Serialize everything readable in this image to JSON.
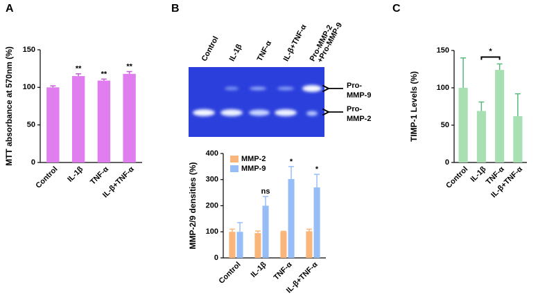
{
  "chart_data": [
    {
      "type": "bar",
      "label": "A",
      "ylabel": "MTT absorbance at 570nm (%)",
      "categories": [
        "Control",
        "IL-1β",
        "TNF-α",
        "IL-β+TNF-α"
      ],
      "values": [
        100,
        115,
        109,
        118
      ],
      "errors": [
        2,
        3,
        2,
        3
      ],
      "color": "#e07ef0",
      "error_color": "#c35fd4",
      "annotations": [
        null,
        "**",
        "**",
        "**"
      ],
      "ylim": [
        0,
        150
      ],
      "yticks": [
        0,
        50,
        100,
        150
      ]
    },
    {
      "type": "bar",
      "label": "B",
      "ylabel": "MMP-2/9 densities (%)",
      "categories": [
        "Control",
        "IL-1β",
        "TNF-α",
        "IL-β+TNF-α"
      ],
      "series": [
        {
          "name": "MMP-2",
          "color": "#f9b57a",
          "values": [
            100,
            95,
            100,
            102
          ],
          "errors": [
            10,
            8,
            2,
            8
          ]
        },
        {
          "name": "MMP-9",
          "color": "#97bdf7",
          "values": [
            100,
            200,
            302,
            270
          ],
          "errors": [
            35,
            35,
            48,
            50
          ],
          "annotations": [
            null,
            "ns",
            "*",
            "*"
          ]
        }
      ],
      "legend": "upper-left",
      "ylim": [
        0,
        400
      ],
      "yticks": [
        0,
        100,
        200,
        300,
        400
      ]
    },
    {
      "type": "bar",
      "label": "C",
      "ylabel": "TIMP-1 Levels (%)",
      "categories": [
        "Control",
        "IL-1β",
        "TNF-α",
        "IL-β+TNF-α"
      ],
      "values": [
        100,
        69,
        124,
        62
      ],
      "errors": [
        40,
        12,
        8,
        30
      ],
      "color": "#a8e0b4",
      "error_color": "#55b97c",
      "bracket": {
        "from": 1,
        "to": 2,
        "text": "*"
      },
      "ylim": [
        0,
        150
      ],
      "yticks": [
        0,
        50,
        100,
        150
      ]
    }
  ],
  "gel": {
    "lanes": [
      [
        "Control"
      ],
      [
        "IL-1β"
      ],
      [
        "TNF-α"
      ],
      [
        "IL-β+TNF-α"
      ],
      [
        "Pro-MMP-2",
        "+Pro-MMP-9"
      ]
    ],
    "bands": [
      [
        "Pro-",
        "MMP-9"
      ],
      [
        "Pro-",
        "MMP-2"
      ]
    ]
  }
}
